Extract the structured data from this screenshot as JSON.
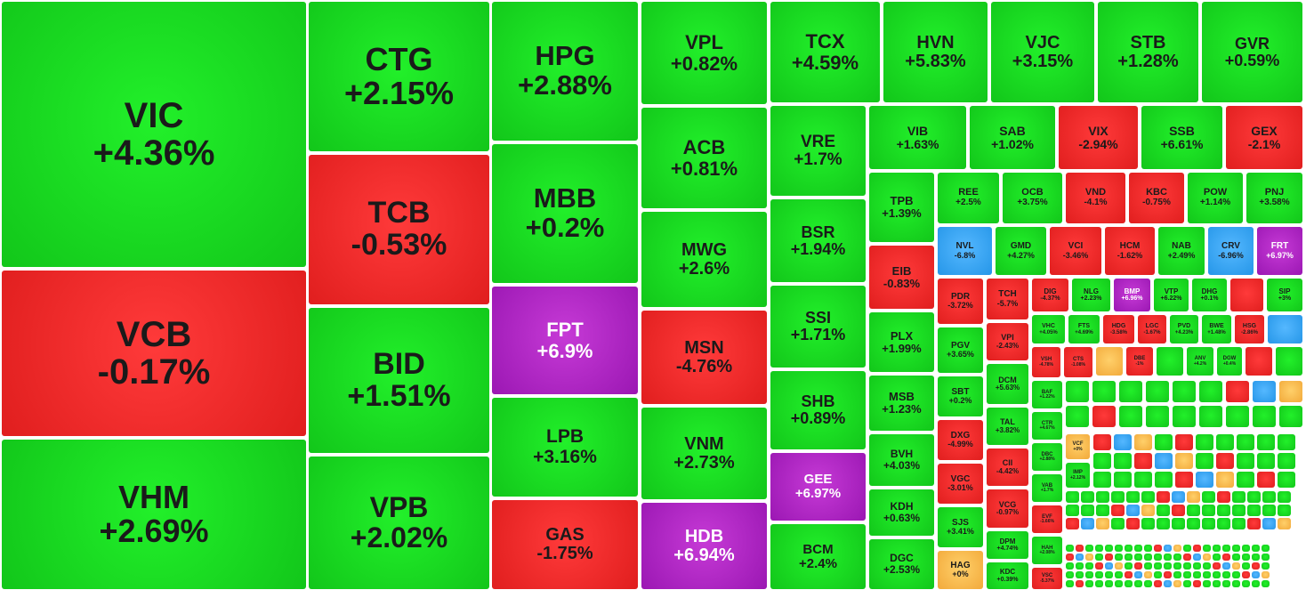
{
  "colors": {
    "up": "#12c61a",
    "down": "#e01e1e",
    "ceiling": "#9b17b3",
    "floor": "#2596e8",
    "reference": "#f2a93a"
  },
  "chart_data": {
    "type": "heatmap",
    "tiles": [
      {
        "symbol": "VIC",
        "change": "+4.36%",
        "status": "up"
      },
      {
        "symbol": "VCB",
        "change": "-0.17%",
        "status": "down"
      },
      {
        "symbol": "VHM",
        "change": "+2.69%",
        "status": "up"
      },
      {
        "symbol": "CTG",
        "change": "+2.15%",
        "status": "up"
      },
      {
        "symbol": "TCB",
        "change": "-0.53%",
        "status": "down"
      },
      {
        "symbol": "BID",
        "change": "+1.51%",
        "status": "up"
      },
      {
        "symbol": "VPB",
        "change": "+2.02%",
        "status": "up"
      },
      {
        "symbol": "HPG",
        "change": "+2.88%",
        "status": "up"
      },
      {
        "symbol": "MBB",
        "change": "+0.2%",
        "status": "up"
      },
      {
        "symbol": "FPT",
        "change": "+6.9%",
        "status": "ceiling"
      },
      {
        "symbol": "LPB",
        "change": "+3.16%",
        "status": "up"
      },
      {
        "symbol": "GAS",
        "change": "-1.75%",
        "status": "down"
      },
      {
        "symbol": "VPL",
        "change": "+0.82%",
        "status": "up"
      },
      {
        "symbol": "ACB",
        "change": "+0.81%",
        "status": "up"
      },
      {
        "symbol": "MWG",
        "change": "+2.6%",
        "status": "up"
      },
      {
        "symbol": "MSN",
        "change": "-4.76%",
        "status": "down"
      },
      {
        "symbol": "VNM",
        "change": "+2.73%",
        "status": "up"
      },
      {
        "symbol": "HDB",
        "change": "+6.94%",
        "status": "ceiling"
      },
      {
        "symbol": "TCX",
        "change": "+4.59%",
        "status": "up"
      },
      {
        "symbol": "HVN",
        "change": "+5.83%",
        "status": "up"
      },
      {
        "symbol": "VJC",
        "change": "+3.15%",
        "status": "up"
      },
      {
        "symbol": "STB",
        "change": "+1.28%",
        "status": "up"
      },
      {
        "symbol": "GVR",
        "change": "+0.59%",
        "status": "up"
      },
      {
        "symbol": "VRE",
        "change": "+1.7%",
        "status": "up"
      },
      {
        "symbol": "BSR",
        "change": "+1.94%",
        "status": "up"
      },
      {
        "symbol": "SSI",
        "change": "+1.71%",
        "status": "up"
      },
      {
        "symbol": "SHB",
        "change": "+0.89%",
        "status": "up"
      },
      {
        "symbol": "GEE",
        "change": "+6.97%",
        "status": "ceiling"
      },
      {
        "symbol": "BCM",
        "change": "+2.4%",
        "status": "up"
      },
      {
        "symbol": "VIB",
        "change": "+1.63%",
        "status": "up"
      },
      {
        "symbol": "SAB",
        "change": "+1.02%",
        "status": "up"
      },
      {
        "symbol": "VIX",
        "change": "-2.94%",
        "status": "down"
      },
      {
        "symbol": "SSB",
        "change": "+6.61%",
        "status": "up"
      },
      {
        "symbol": "GEX",
        "change": "-2.1%",
        "status": "down"
      },
      {
        "symbol": "TPB",
        "change": "+1.39%",
        "status": "up"
      },
      {
        "symbol": "REE",
        "change": "+2.5%",
        "status": "up"
      },
      {
        "symbol": "OCB",
        "change": "+3.75%",
        "status": "up"
      },
      {
        "symbol": "VND",
        "change": "-4.1%",
        "status": "down"
      },
      {
        "symbol": "KBC",
        "change": "-0.75%",
        "status": "down"
      },
      {
        "symbol": "POW",
        "change": "+1.14%",
        "status": "up"
      },
      {
        "symbol": "PNJ",
        "change": "+3.58%",
        "status": "up"
      },
      {
        "symbol": "NVL",
        "change": "-6.8%",
        "status": "floor"
      },
      {
        "symbol": "GMD",
        "change": "+4.27%",
        "status": "up"
      },
      {
        "symbol": "VCI",
        "change": "-3.46%",
        "status": "down"
      },
      {
        "symbol": "HCM",
        "change": "-1.62%",
        "status": "down"
      },
      {
        "symbol": "NAB",
        "change": "+2.49%",
        "status": "up"
      },
      {
        "symbol": "CRV",
        "change": "-6.96%",
        "status": "floor"
      },
      {
        "symbol": "FRT",
        "change": "+6.97%",
        "status": "ceiling"
      },
      {
        "symbol": "EIB",
        "change": "-0.83%",
        "status": "down"
      },
      {
        "symbol": "PLX",
        "change": "+1.99%",
        "status": "up"
      },
      {
        "symbol": "MSB",
        "change": "+1.23%",
        "status": "up"
      },
      {
        "symbol": "BVH",
        "change": "+4.03%",
        "status": "up"
      },
      {
        "symbol": "KDH",
        "change": "+0.63%",
        "status": "up"
      },
      {
        "symbol": "DGC",
        "change": "+2.53%",
        "status": "up"
      },
      {
        "symbol": "PDR",
        "change": "-3.72%",
        "status": "down"
      },
      {
        "symbol": "PGV",
        "change": "+3.65%",
        "status": "up"
      },
      {
        "symbol": "SBT",
        "change": "+0.2%",
        "status": "up"
      },
      {
        "symbol": "DXG",
        "change": "-4.99%",
        "status": "down"
      },
      {
        "symbol": "VGC",
        "change": "-3.01%",
        "status": "down"
      },
      {
        "symbol": "SJS",
        "change": "+3.41%",
        "status": "up"
      },
      {
        "symbol": "HAG",
        "change": "+0%",
        "status": "reference"
      },
      {
        "symbol": "TCH",
        "change": "-5.7%",
        "status": "down"
      },
      {
        "symbol": "VPI",
        "change": "-2.43%",
        "status": "down"
      },
      {
        "symbol": "DCM",
        "change": "+5.63%",
        "status": "up"
      },
      {
        "symbol": "TAL",
        "change": "+3.82%",
        "status": "up"
      },
      {
        "symbol": "CII",
        "change": "-4.42%",
        "status": "down"
      },
      {
        "symbol": "VCG",
        "change": "-0.97%",
        "status": "down"
      },
      {
        "symbol": "DPM",
        "change": "+4.74%",
        "status": "up"
      },
      {
        "symbol": "KDC",
        "change": "+0.39%",
        "status": "up"
      },
      {
        "symbol": "DIG",
        "change": "-4.37%",
        "status": "down"
      },
      {
        "symbol": "NLG",
        "change": "+2.23%",
        "status": "up"
      },
      {
        "symbol": "BMP",
        "change": "+6.96%",
        "status": "ceiling"
      },
      {
        "symbol": "VTP",
        "change": "+6.22%",
        "status": "up"
      },
      {
        "symbol": "DHG",
        "change": "+0.1%",
        "status": "up"
      },
      {
        "symbol": "SIP",
        "change": "+3%",
        "status": "up"
      },
      {
        "symbol": "VHC",
        "change": "+4.05%",
        "status": "up"
      },
      {
        "symbol": "FTS",
        "change": "+4.69%",
        "status": "up"
      },
      {
        "symbol": "HDG",
        "change": "-3.58%",
        "status": "down"
      },
      {
        "symbol": "LGC",
        "change": "-1.67%",
        "status": "down"
      },
      {
        "symbol": "PVD",
        "change": "+4.23%",
        "status": "up"
      },
      {
        "symbol": "BWE",
        "change": "+1.48%",
        "status": "up"
      },
      {
        "symbol": "HSG",
        "change": "-2.86%",
        "status": "down"
      },
      {
        "symbol": "VSH",
        "change": "-4.78%",
        "status": "down"
      },
      {
        "symbol": "CTS",
        "change": "-1.08%",
        "status": "down"
      },
      {
        "symbol": "DBE",
        "change": "-1%",
        "status": "down"
      },
      {
        "symbol": "ANV",
        "change": "+4.2%",
        "status": "up"
      },
      {
        "symbol": "DGW",
        "change": "+0.4%",
        "status": "up"
      },
      {
        "symbol": "BAF",
        "change": "+1.22%",
        "status": "up"
      },
      {
        "symbol": "CTR",
        "change": "+4.67%",
        "status": "up"
      },
      {
        "symbol": "DBC",
        "change": "+2.88%",
        "status": "up"
      },
      {
        "symbol": "VAB",
        "change": "+1.7%",
        "status": "up"
      },
      {
        "symbol": "EVF",
        "change": "-1.66%",
        "status": "down"
      },
      {
        "symbol": "HAH",
        "change": "+2.08%",
        "status": "up"
      },
      {
        "symbol": "VSC",
        "change": "-5.37%",
        "status": "down"
      },
      {
        "symbol": "VCF",
        "change": "+0%",
        "status": "reference"
      },
      {
        "symbol": "IMP",
        "change": "+2.12%",
        "status": "up"
      }
    ]
  }
}
